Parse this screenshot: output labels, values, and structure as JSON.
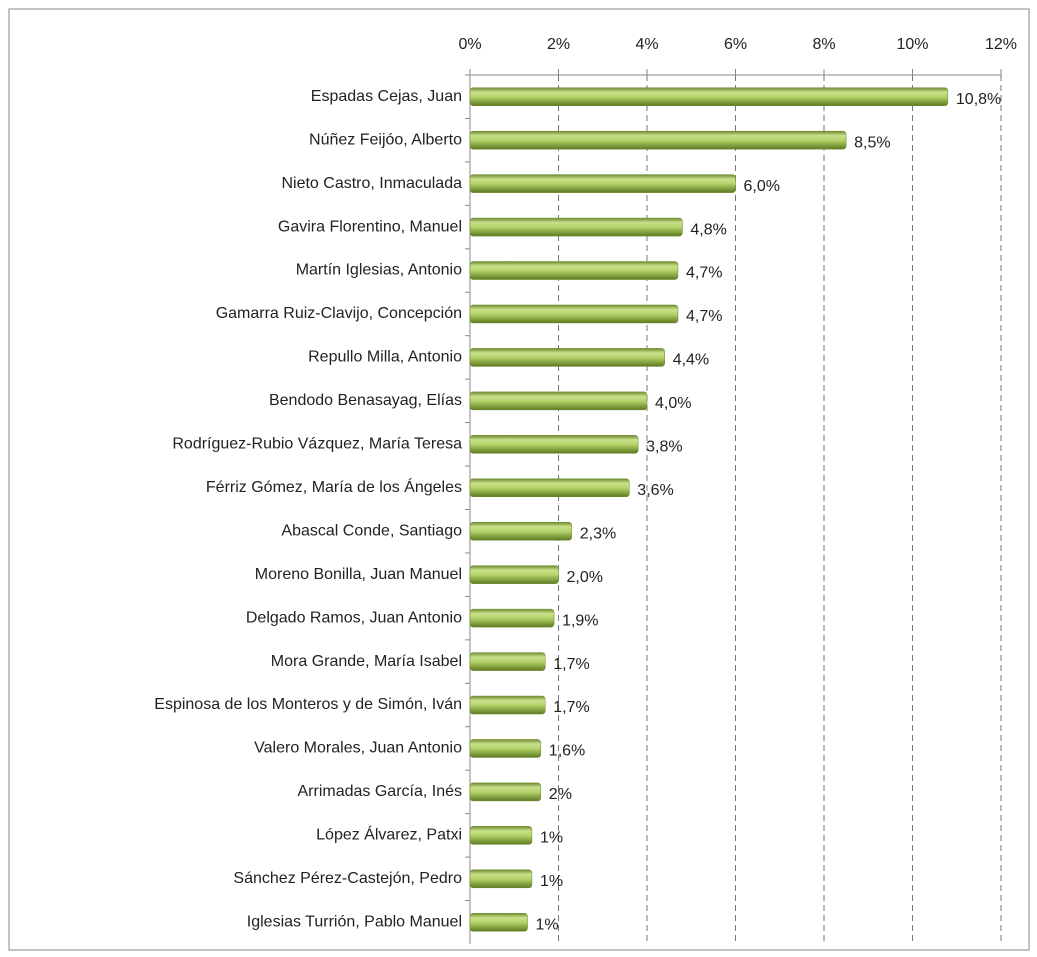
{
  "chart_data": {
    "type": "bar",
    "orientation": "horizontal",
    "categories": [
      "Espadas Cejas, Juan",
      "Núñez Feijóo, Alberto",
      "Nieto Castro, Inmaculada",
      "Gavira Florentino, Manuel",
      "Martín Iglesias, Antonio",
      "Gamarra Ruiz-Clavijo, Concepción",
      "Repullo Milla, Antonio",
      "Bendodo Benasayag, Elías",
      "Rodríguez-Rubio Vázquez, María Teresa",
      "Férriz Gómez, María de los Ángeles",
      "Abascal Conde, Santiago",
      "Moreno Bonilla, Juan Manuel",
      "Delgado Ramos, Juan Antonio",
      "Mora Grande, María Isabel",
      "Espinosa de los Monteros y de Simón, Iván",
      "Valero Morales, Juan Antonio",
      "Arrimadas García, Inés",
      "López Álvarez, Patxi",
      "Sánchez Pérez-Castejón, Pedro",
      "Iglesias Turrión, Pablo Manuel"
    ],
    "values": [
      10.8,
      8.5,
      6.0,
      4.8,
      4.7,
      4.7,
      4.4,
      4.0,
      3.8,
      3.6,
      2.3,
      2.0,
      1.9,
      1.7,
      1.7,
      1.6,
      1.6,
      1.4,
      1.4,
      1.3
    ],
    "value_labels": [
      "10,8%",
      "8,5%",
      "6,0%",
      "4,8%",
      "4,7%",
      "4,7%",
      "4,4%",
      "4,0%",
      "3,8%",
      "3,6%",
      "2,3%",
      "2,0%",
      "1,9%",
      "1,7%",
      "1,7%",
      "1,6%",
      "2%",
      "1%",
      "1%",
      "1%"
    ],
    "color": "#9bbb59",
    "xlim": [
      0,
      12
    ],
    "xticks": [
      {
        "value": 0,
        "label": "0%"
      },
      {
        "value": 2,
        "label": "2%"
      },
      {
        "value": 4,
        "label": "4%"
      },
      {
        "value": 6,
        "label": "6%"
      },
      {
        "value": 8,
        "label": "8%"
      },
      {
        "value": 10,
        "label": "10%"
      },
      {
        "value": 12,
        "label": "12%"
      }
    ],
    "grid": true
  }
}
